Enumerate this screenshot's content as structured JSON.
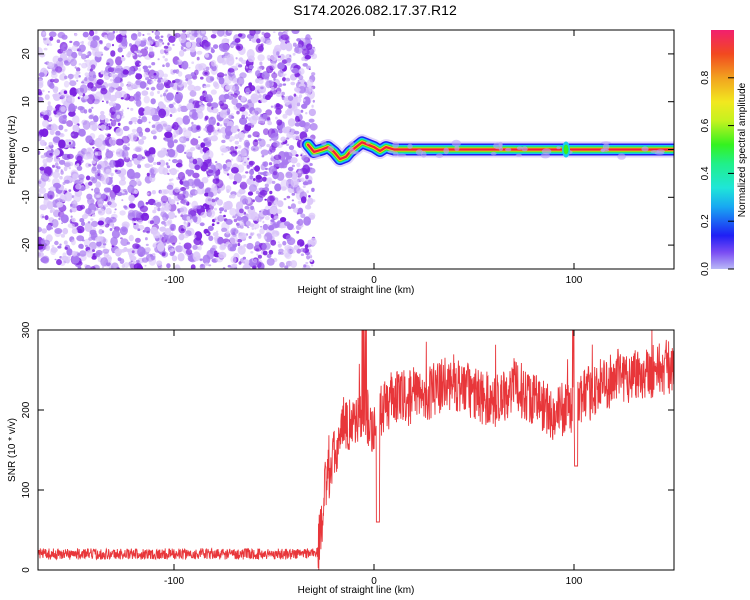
{
  "title": "S174.2026.082.17.37.R12",
  "chart_data": [
    {
      "type": "heatmap",
      "name": "spectrogram",
      "xlabel": "Height of straight line (km)",
      "ylabel": "Frequency (Hz)",
      "xlim": [
        -168,
        150
      ],
      "ylim": [
        -25,
        25
      ],
      "xticks": [
        -100,
        0,
        100
      ],
      "yticks": [
        -20,
        -10,
        0,
        10,
        20
      ],
      "xtick_labels": [
        "-100",
        "0",
        "100"
      ],
      "ytick_labels": [
        "-20",
        "-10",
        "0",
        "10",
        "20"
      ],
      "noise_region": [
        -168,
        -33
      ],
      "signal_region": [
        -33,
        150
      ],
      "signal_track": [
        [
          -33,
          1
        ],
        [
          -30,
          -0.5
        ],
        [
          -26,
          0
        ],
        [
          -23,
          0.5
        ],
        [
          -20,
          -0.5
        ],
        [
          -17,
          -2
        ],
        [
          -14,
          -1.5
        ],
        [
          -12,
          -0.5
        ],
        [
          -9,
          0.5
        ],
        [
          -6,
          1.5
        ],
        [
          -3,
          1
        ],
        [
          0,
          0.5
        ],
        [
          3,
          -0.3
        ],
        [
          6,
          0.5
        ],
        [
          10,
          0
        ],
        [
          20,
          0
        ],
        [
          60,
          0
        ],
        [
          95,
          0
        ],
        [
          100,
          0
        ],
        [
          150,
          0
        ]
      ],
      "colorbar": {
        "label": "Normalized spectral amplitude",
        "range": [
          0,
          1
        ],
        "ticks": [
          0.0,
          0.2,
          0.4,
          0.6,
          0.8
        ],
        "tick_labels": [
          "0.0",
          "0.2",
          "0.4",
          "0.6",
          "0.8"
        ]
      }
    },
    {
      "type": "line",
      "name": "snr",
      "xlabel": "Height of straight line (km)",
      "ylabel": "SNR (10 * v/v)",
      "xlim": [
        -168,
        150
      ],
      "ylim": [
        0,
        300
      ],
      "xticks": [
        -100,
        0,
        100
      ],
      "yticks": [
        0,
        100,
        200,
        300
      ],
      "xtick_labels": [
        "-100",
        "0",
        "100"
      ],
      "ytick_labels": [
        "0",
        "100",
        "200",
        "300"
      ],
      "series": [
        {
          "name": "SNR",
          "color": "#e8363a",
          "envelope": [
            [
              -168,
              20
            ],
            [
              -100,
              20
            ],
            [
              -40,
              20
            ],
            [
              -28,
              22
            ],
            [
              -24,
              110
            ],
            [
              -20,
              140
            ],
            [
              -16,
              170
            ],
            [
              -12,
              185
            ],
            [
              -8,
              190
            ],
            [
              -4,
              195
            ],
            [
              0,
              175
            ],
            [
              5,
              205
            ],
            [
              10,
              215
            ],
            [
              20,
              215
            ],
            [
              30,
              225
            ],
            [
              40,
              235
            ],
            [
              50,
              220
            ],
            [
              60,
              210
            ],
            [
              70,
              230
            ],
            [
              80,
              215
            ],
            [
              90,
              195
            ],
            [
              100,
              205
            ],
            [
              110,
              225
            ],
            [
              120,
              240
            ],
            [
              130,
              245
            ],
            [
              140,
              250
            ],
            [
              150,
              255
            ]
          ],
          "noise_amplitude": {
            "low": 7,
            "high": 35
          }
        }
      ]
    }
  ],
  "colors": {
    "noise_dark": "#7a1fe0",
    "noise_mid": "#a97af0",
    "noise_light": "#dcc8fa",
    "line": "#e8363a",
    "axis": "#000000"
  }
}
